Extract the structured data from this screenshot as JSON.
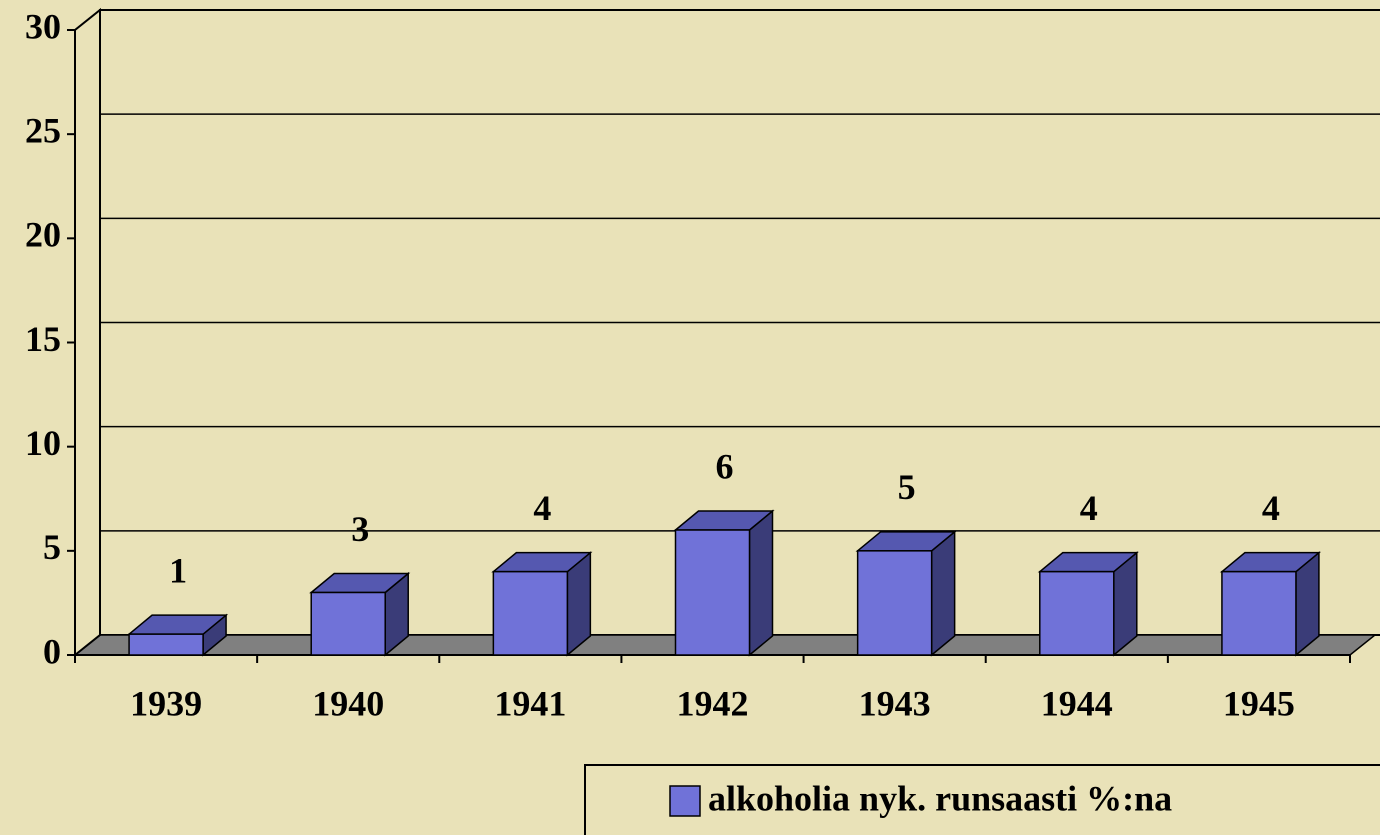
{
  "chart_data": {
    "type": "bar3d",
    "categories": [
      "1939",
      "1940",
      "1941",
      "1942",
      "1943",
      "1944",
      "1945"
    ],
    "series": [
      {
        "name": "alkoholia nyk. runsaasti %:na",
        "color": "#7072d8",
        "values": [
          1,
          3,
          4,
          6,
          5,
          4,
          4
        ]
      }
    ],
    "ylim": [
      0,
      30
    ],
    "yticks": [
      0,
      5,
      10,
      15,
      20,
      25,
      30
    ],
    "grid": true,
    "legend": "bottom-right"
  }
}
